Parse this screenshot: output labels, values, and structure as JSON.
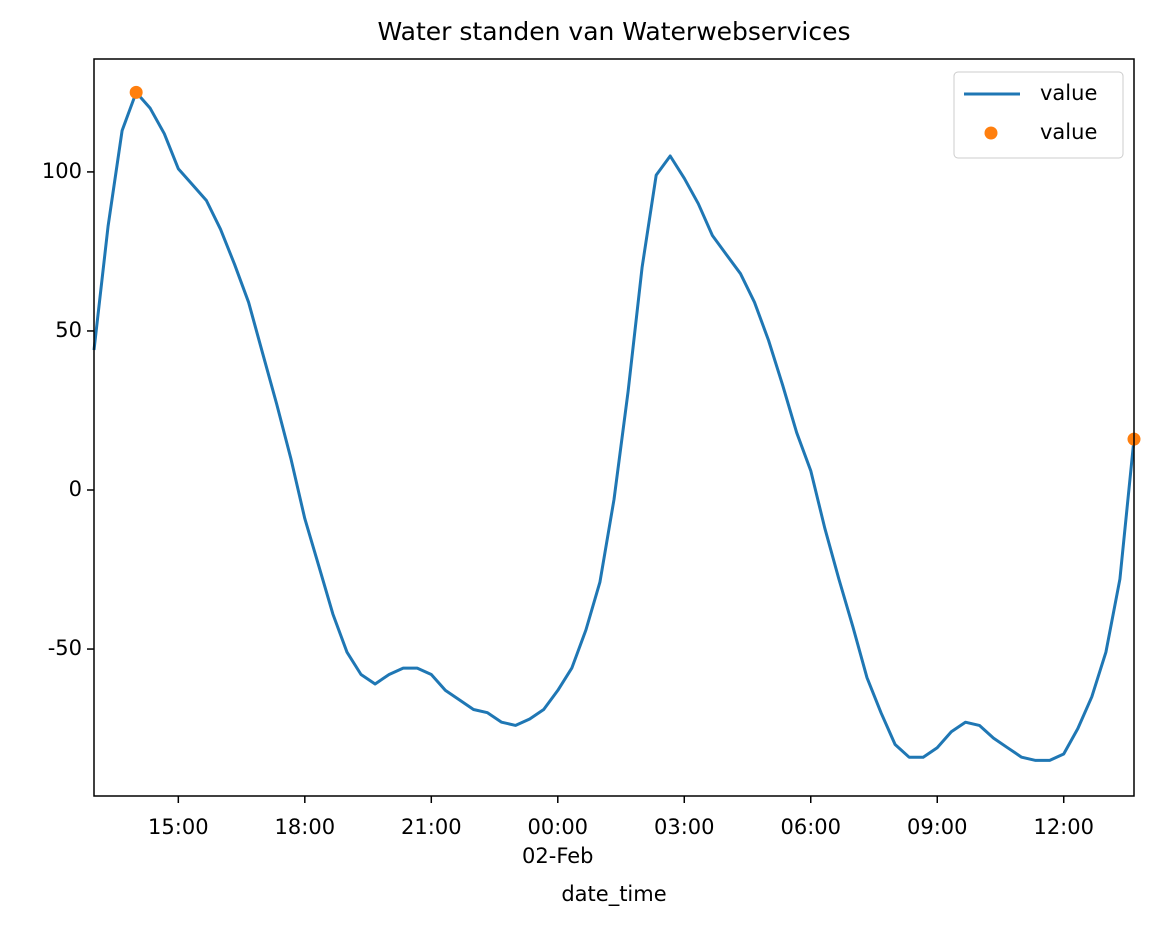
{
  "chart_data": {
    "type": "line",
    "title": "Water standen van Waterwebservices",
    "xlabel": "date_time",
    "x": [
      "01-Feb 13:00",
      "01-Feb 13:20",
      "01-Feb 13:40",
      "01-Feb 14:00",
      "01-Feb 14:20",
      "01-Feb 14:40",
      "01-Feb 15:00",
      "01-Feb 15:20",
      "01-Feb 15:40",
      "01-Feb 16:00",
      "01-Feb 16:20",
      "01-Feb 16:40",
      "01-Feb 17:00",
      "01-Feb 17:20",
      "01-Feb 17:40",
      "01-Feb 18:00",
      "01-Feb 18:20",
      "01-Feb 18:40",
      "01-Feb 19:00",
      "01-Feb 19:20",
      "01-Feb 19:40",
      "01-Feb 20:00",
      "01-Feb 20:20",
      "01-Feb 20:40",
      "01-Feb 21:00",
      "01-Feb 21:20",
      "01-Feb 21:40",
      "01-Feb 22:00",
      "01-Feb 22:20",
      "01-Feb 22:40",
      "01-Feb 23:00",
      "01-Feb 23:20",
      "01-Feb 23:40",
      "02-Feb 00:00",
      "02-Feb 00:20",
      "02-Feb 00:40",
      "02-Feb 01:00",
      "02-Feb 01:20",
      "02-Feb 01:40",
      "02-Feb 02:00",
      "02-Feb 02:20",
      "02-Feb 02:40",
      "02-Feb 03:00",
      "02-Feb 03:20",
      "02-Feb 03:40",
      "02-Feb 04:00",
      "02-Feb 04:20",
      "02-Feb 04:40",
      "02-Feb 05:00",
      "02-Feb 05:20",
      "02-Feb 05:40",
      "02-Feb 06:00",
      "02-Feb 06:20",
      "02-Feb 06:40",
      "02-Feb 07:00",
      "02-Feb 07:20",
      "02-Feb 07:40",
      "02-Feb 08:00",
      "02-Feb 08:20",
      "02-Feb 08:40",
      "02-Feb 09:00",
      "02-Feb 09:20",
      "02-Feb 09:40",
      "02-Feb 10:00",
      "02-Feb 10:20",
      "02-Feb 10:40",
      "02-Feb 11:00",
      "02-Feb 11:20",
      "02-Feb 11:40",
      "02-Feb 12:00",
      "02-Feb 12:20",
      "02-Feb 12:40",
      "02-Feb 13:00",
      "02-Feb 13:20",
      "02-Feb 13:40"
    ],
    "series": [
      {
        "name": "value",
        "color": "#1f77b4",
        "style": "line",
        "values": [
          44,
          83,
          113,
          125,
          120,
          112,
          101,
          96,
          91,
          82,
          71,
          59,
          43,
          27,
          10,
          -9,
          -24,
          -39,
          -51,
          -58,
          -61,
          -58,
          -56,
          -56,
          -58,
          -63,
          -66,
          -69,
          -70,
          -73,
          -74,
          -72,
          -69,
          -63,
          -56,
          -44,
          -29,
          -3,
          31,
          70,
          99,
          105,
          98,
          90,
          80,
          74,
          68,
          59,
          47,
          33,
          18,
          6,
          -12,
          -28,
          -43,
          -59,
          -70,
          -80,
          -84,
          -84,
          -81,
          -76,
          -73,
          -74,
          -78,
          -81,
          -84,
          -85,
          -85,
          -83,
          -75,
          -65,
          -51,
          -28,
          16
        ]
      },
      {
        "name": "value",
        "color": "#ff7f0e",
        "style": "markers",
        "x": [
          "01-Feb 14:00",
          "02-Feb 13:40"
        ],
        "values": [
          125,
          16
        ]
      }
    ],
    "xlim": [
      "01-Feb 13:00",
      "02-Feb 13:40"
    ],
    "xticks": [
      {
        "value": "01-Feb 15:00",
        "label": "15:00"
      },
      {
        "value": "01-Feb 18:00",
        "label": "18:00"
      },
      {
        "value": "01-Feb 21:00",
        "label": "21:00"
      },
      {
        "value": "02-Feb 00:00",
        "label": "00:00\n02-Feb"
      },
      {
        "value": "02-Feb 03:00",
        "label": "03:00"
      },
      {
        "value": "02-Feb 06:00",
        "label": "06:00"
      },
      {
        "value": "02-Feb 09:00",
        "label": "09:00"
      },
      {
        "value": "02-Feb 12:00",
        "label": "12:00"
      }
    ],
    "ylim": [
      -96.2,
      135.5
    ],
    "yticks": [
      -50,
      0,
      50,
      100
    ],
    "grid": false,
    "legend": "upper right"
  }
}
